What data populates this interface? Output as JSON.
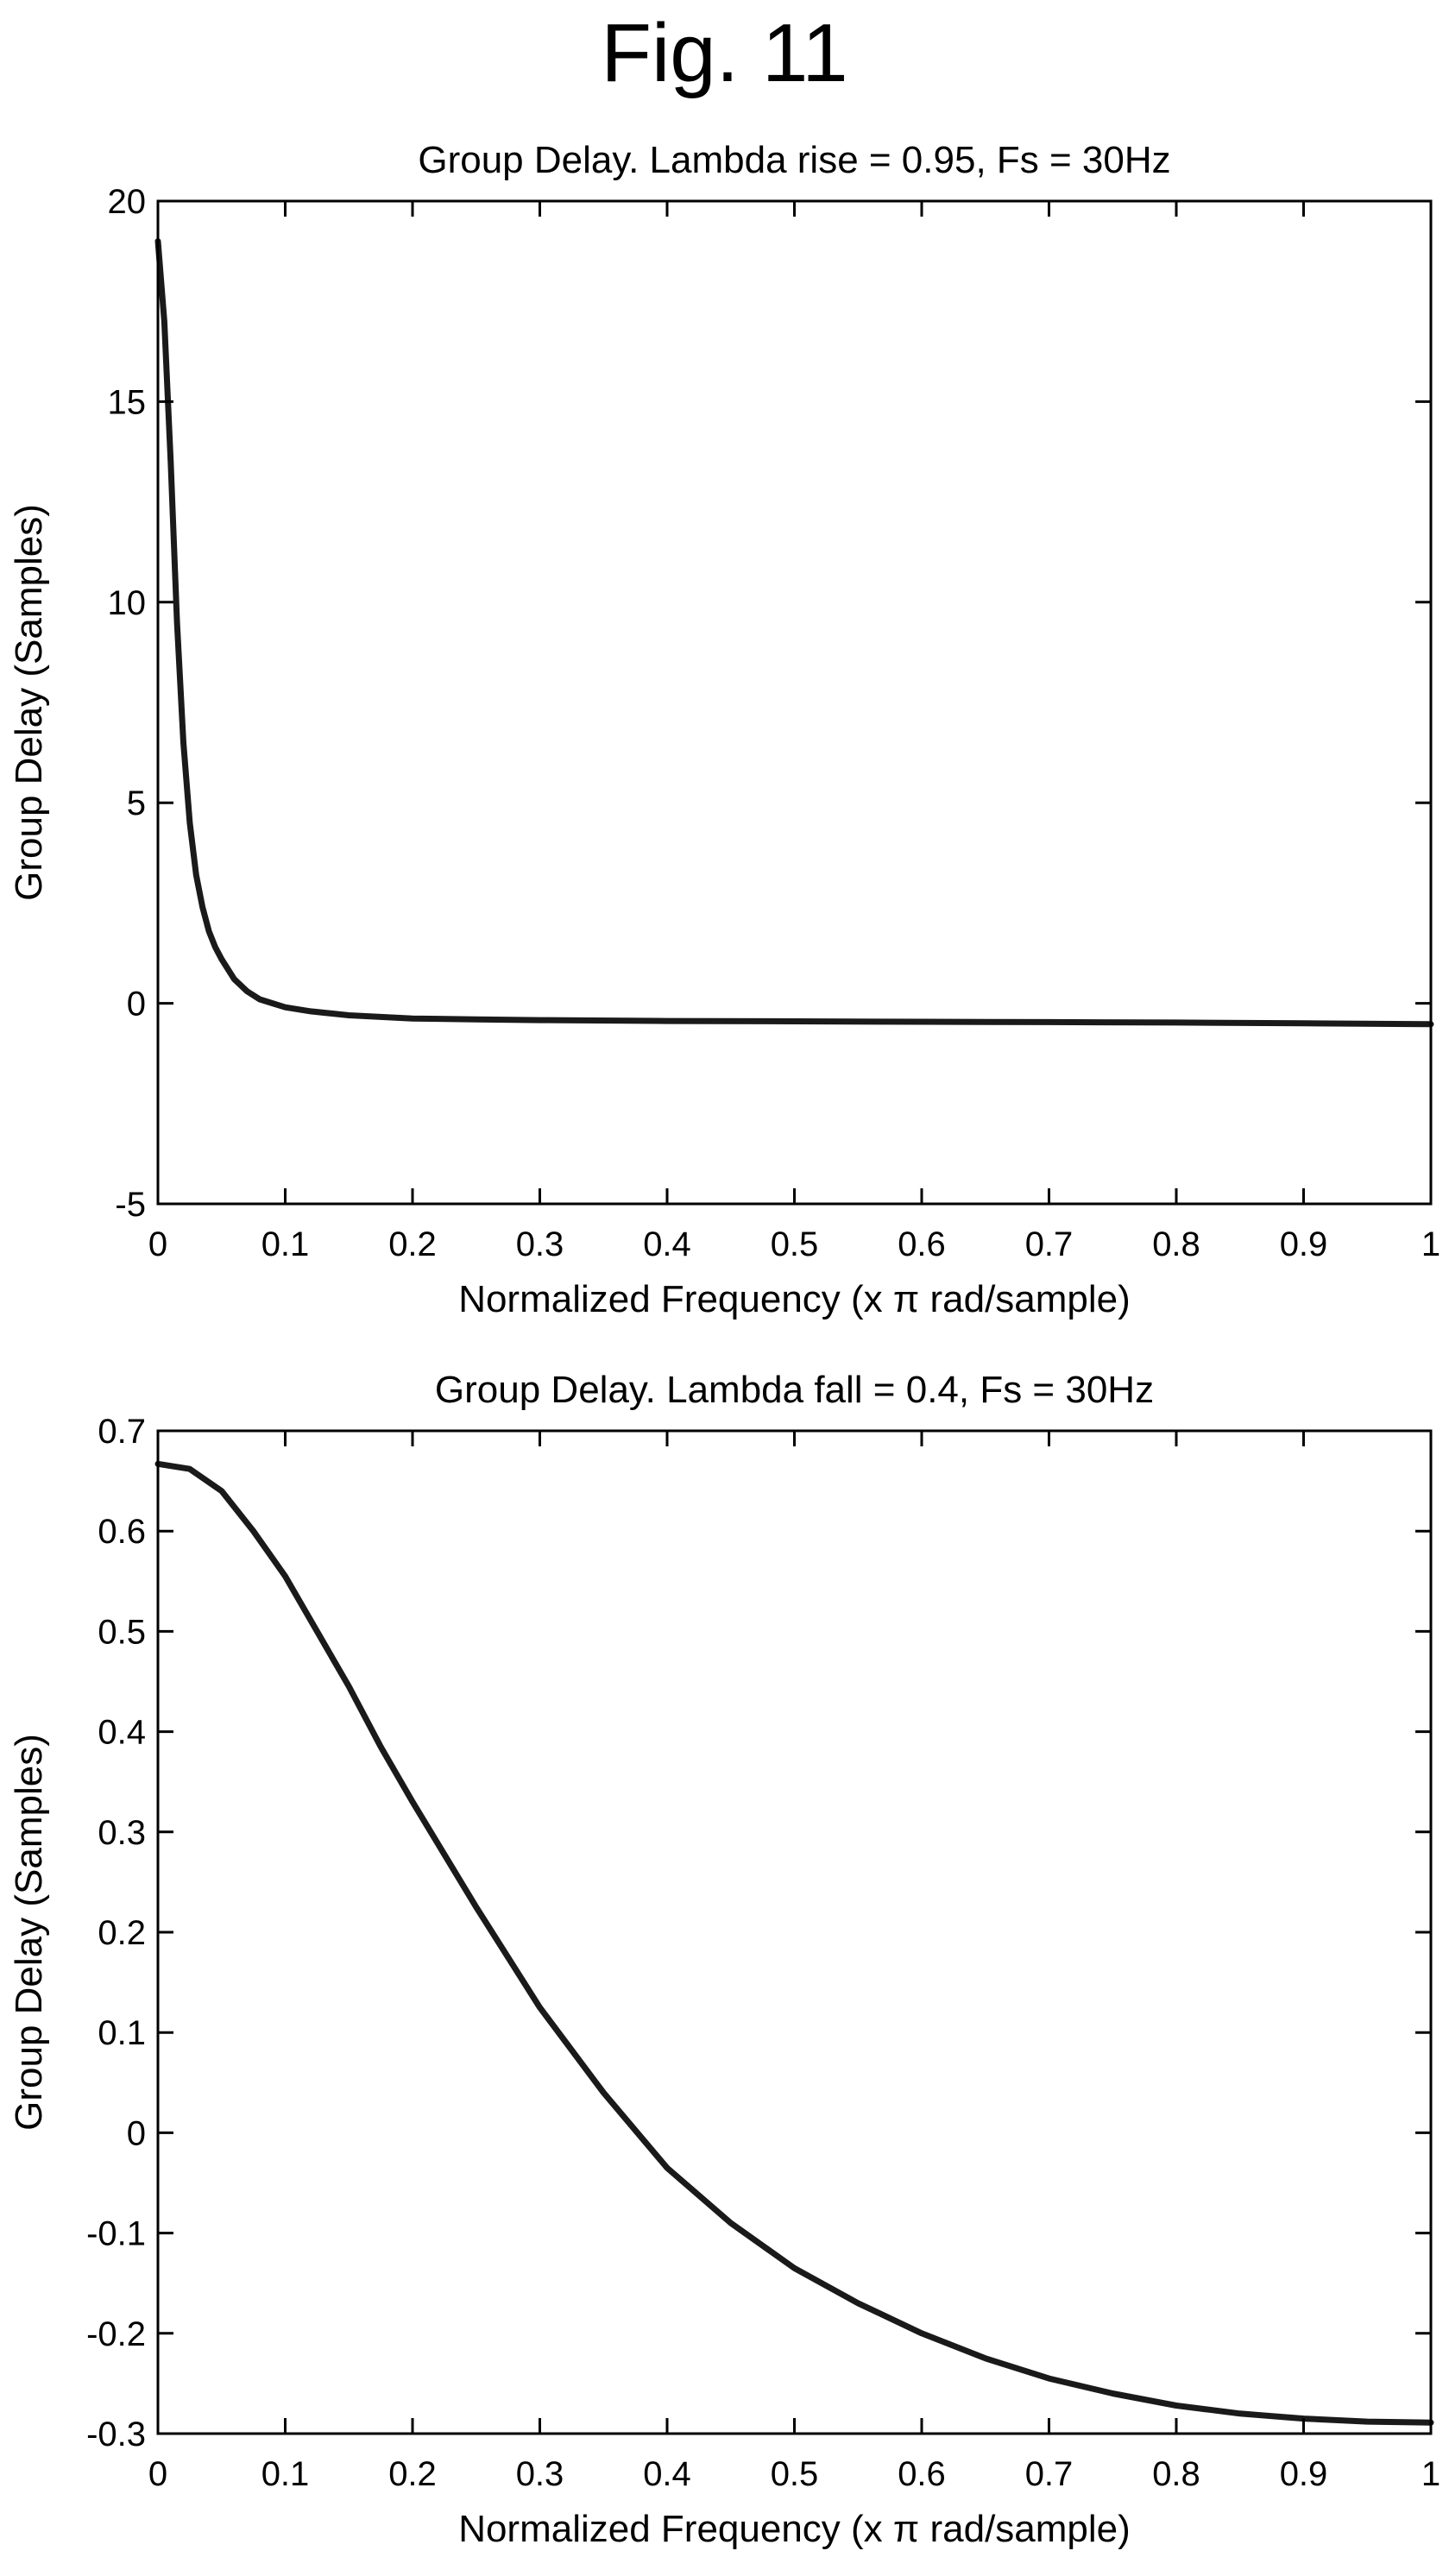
{
  "figure_title": "Fig. 11",
  "chart_data": [
    {
      "type": "line",
      "title": "Group Delay. Lambda rise = 0.95, Fs = 30Hz",
      "xlabel": "Normalized Frequency (x π rad/sample)",
      "ylabel": "Group Delay (Samples)",
      "xlim": [
        0,
        1
      ],
      "ylim": [
        -5,
        20
      ],
      "xticks": [
        0,
        0.1,
        0.2,
        0.3,
        0.4,
        0.5,
        0.6,
        0.7,
        0.8,
        0.9,
        1
      ],
      "xtick_labels": [
        "0",
        "0.1",
        "0.2",
        "0.3",
        "0.4",
        "0.5",
        "0.6",
        "0.7",
        "0.8",
        "0.9",
        "1"
      ],
      "yticks": [
        -5,
        0,
        5,
        10,
        15,
        20
      ],
      "ytick_labels": [
        "-5",
        "0",
        "5",
        "10",
        "15",
        "20"
      ],
      "grid": false,
      "series": [
        {
          "color": "#1a1a1a",
          "x": [
            0,
            0.005,
            0.01,
            0.015,
            0.02,
            0.025,
            0.03,
            0.035,
            0.04,
            0.045,
            0.05,
            0.06,
            0.07,
            0.08,
            0.09,
            0.1,
            0.12,
            0.15,
            0.2,
            0.25,
            0.3,
            0.4,
            0.5,
            0.6,
            0.7,
            0.8,
            0.9,
            1.0
          ],
          "y": [
            19.0,
            17.0,
            13.5,
            9.5,
            6.5,
            4.5,
            3.2,
            2.4,
            1.8,
            1.4,
            1.1,
            0.6,
            0.3,
            0.1,
            0.0,
            -0.1,
            -0.2,
            -0.3,
            -0.38,
            -0.4,
            -0.42,
            -0.44,
            -0.45,
            -0.46,
            -0.47,
            -0.48,
            -0.5,
            -0.52
          ]
        }
      ]
    },
    {
      "type": "line",
      "title": "Group Delay. Lambda fall = 0.4, Fs = 30Hz",
      "xlabel": "Normalized Frequency (x π rad/sample)",
      "ylabel": "Group Delay (Samples)",
      "xlim": [
        0,
        1
      ],
      "ylim": [
        -0.3,
        0.7
      ],
      "xticks": [
        0,
        0.1,
        0.2,
        0.3,
        0.4,
        0.5,
        0.6,
        0.7,
        0.8,
        0.9,
        1
      ],
      "xtick_labels": [
        "0",
        "0.1",
        "0.2",
        "0.3",
        "0.4",
        "0.5",
        "0.6",
        "0.7",
        "0.8",
        "0.9",
        "1"
      ],
      "yticks": [
        -0.3,
        -0.2,
        -0.1,
        0,
        0.1,
        0.2,
        0.3,
        0.4,
        0.5,
        0.6,
        0.7
      ],
      "ytick_labels": [
        "-0.3",
        "-0.2",
        "-0.1",
        "0",
        "0.1",
        "0.2",
        "0.3",
        "0.4",
        "0.5",
        "0.6",
        "0.7"
      ],
      "grid": false,
      "series": [
        {
          "color": "#1a1a1a",
          "x": [
            0,
            0.025,
            0.05,
            0.075,
            0.1,
            0.125,
            0.15,
            0.175,
            0.2,
            0.25,
            0.3,
            0.35,
            0.4,
            0.45,
            0.5,
            0.55,
            0.6,
            0.65,
            0.7,
            0.75,
            0.8,
            0.85,
            0.9,
            0.95,
            1.0
          ],
          "y": [
            0.667,
            0.662,
            0.64,
            0.6,
            0.555,
            0.5,
            0.445,
            0.385,
            0.33,
            0.225,
            0.125,
            0.04,
            -0.035,
            -0.09,
            -0.135,
            -0.17,
            -0.2,
            -0.225,
            -0.245,
            -0.26,
            -0.272,
            -0.28,
            -0.285,
            -0.288,
            -0.289
          ]
        }
      ]
    }
  ]
}
